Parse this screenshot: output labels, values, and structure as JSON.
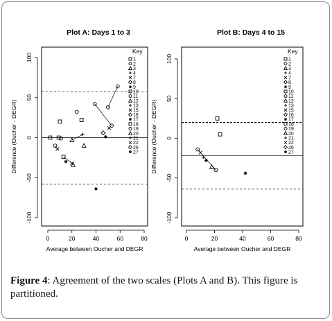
{
  "figure": {
    "caption_label": "Figure 4",
    "caption_text": ": Agreement of the two scales (Plots A and B). This figure is partitioned."
  },
  "chart_data": [
    {
      "type": "scatter",
      "title": "Plot A: Days 1 to 3",
      "xlabel": "Average between Oucher and DEGR",
      "ylabel": "Difference (Oucher - DEGR)",
      "xlim": [
        0,
        80
      ],
      "ylim": [
        -100,
        100
      ],
      "xticks": [
        "0",
        "20",
        "40",
        "60",
        "80"
      ],
      "yticks": [
        "-100",
        "-50",
        "0",
        "50",
        "100"
      ],
      "mean_line": 0,
      "limit_lines": [
        57,
        -58
      ],
      "legend_title": "Key",
      "legend_placement": "top-right",
      "legend": [
        "1",
        "2",
        "3",
        "4",
        "7",
        "8",
        "9",
        "10",
        "11",
        "12",
        "13",
        "15",
        "16",
        "17",
        "18",
        "19",
        "20",
        "21",
        "22",
        "26",
        "27"
      ],
      "points": [
        {
          "x": 2,
          "y": 0,
          "marker": "square"
        },
        {
          "x": 9,
          "y": 0,
          "marker": "square"
        },
        {
          "x": 11,
          "y": -1,
          "marker": "circle"
        },
        {
          "x": 10,
          "y": 20,
          "marker": "square"
        },
        {
          "x": 6,
          "y": -10,
          "marker": "circle"
        },
        {
          "x": 8,
          "y": -14,
          "marker": "x"
        },
        {
          "x": 13,
          "y": -24,
          "marker": "square"
        },
        {
          "x": 15,
          "y": -30,
          "marker": "star"
        },
        {
          "x": 20,
          "y": -32,
          "marker": "x"
        },
        {
          "x": 21,
          "y": -34,
          "marker": "triangle"
        },
        {
          "x": 20,
          "y": -3,
          "marker": "triangle"
        },
        {
          "x": 24,
          "y": 32,
          "marker": "circle"
        },
        {
          "x": 28,
          "y": 22,
          "marker": "square"
        },
        {
          "x": 29,
          "y": 4,
          "marker": "plus"
        },
        {
          "x": 30,
          "y": -10,
          "marker": "triangle"
        },
        {
          "x": 39,
          "y": 42,
          "marker": "circle"
        },
        {
          "x": 40,
          "y": -64,
          "marker": "star"
        },
        {
          "x": 46,
          "y": 6,
          "marker": "diamond"
        },
        {
          "x": 48,
          "y": 1,
          "marker": "star"
        },
        {
          "x": 51,
          "y": 12,
          "marker": "x"
        },
        {
          "x": 53,
          "y": 15,
          "marker": "circle"
        },
        {
          "x": 50,
          "y": 38,
          "marker": "circle"
        },
        {
          "x": 58,
          "y": 64,
          "marker": "circle"
        }
      ],
      "segments": [
        [
          [
            6,
            -10
          ],
          [
            8,
            -14
          ]
        ],
        [
          [
            13,
            -24
          ],
          [
            20,
            -32
          ]
        ],
        [
          [
            20,
            -3
          ],
          [
            29,
            4
          ]
        ],
        [
          [
            39,
            42
          ],
          [
            53,
            15
          ]
        ],
        [
          [
            50,
            38
          ],
          [
            58,
            64
          ]
        ]
      ]
    },
    {
      "type": "scatter",
      "title": "Plot B: Days 4 to 15",
      "xlabel": "Average between Oucher and DEGR",
      "ylabel": "Difference (Oucher - DEGR)",
      "xlim": [
        0,
        80
      ],
      "ylim": [
        -100,
        100
      ],
      "xticks": [
        "0",
        "20",
        "40",
        "60",
        "80"
      ],
      "yticks": [
        "-100",
        "-50",
        "0",
        "50",
        "100"
      ],
      "mean_line": -22,
      "limit_lines": [
        20,
        -64
      ],
      "legend_title": "Key",
      "legend_placement": "top-right",
      "legend": [
        "1",
        "2",
        "3",
        "4",
        "7",
        "8",
        "9",
        "10",
        "11",
        "12",
        "13",
        "15",
        "16",
        "17",
        "18",
        "19",
        "20",
        "21",
        "22",
        "26",
        "27"
      ],
      "points": [
        {
          "x": 22,
          "y": 25,
          "marker": "square"
        },
        {
          "x": 24,
          "y": 5,
          "marker": "square"
        },
        {
          "x": 8,
          "y": -14,
          "marker": "circle"
        },
        {
          "x": 10,
          "y": -18,
          "marker": "x"
        },
        {
          "x": 12,
          "y": -24,
          "marker": "plus"
        },
        {
          "x": 14,
          "y": -28,
          "marker": "star"
        },
        {
          "x": 18,
          "y": -36,
          "marker": "triangle"
        },
        {
          "x": 21,
          "y": -40,
          "marker": "circle"
        },
        {
          "x": 42,
          "y": -44,
          "marker": "star"
        }
      ],
      "segments": [
        [
          [
            8,
            -14
          ],
          [
            21,
            -40
          ]
        ]
      ]
    }
  ]
}
